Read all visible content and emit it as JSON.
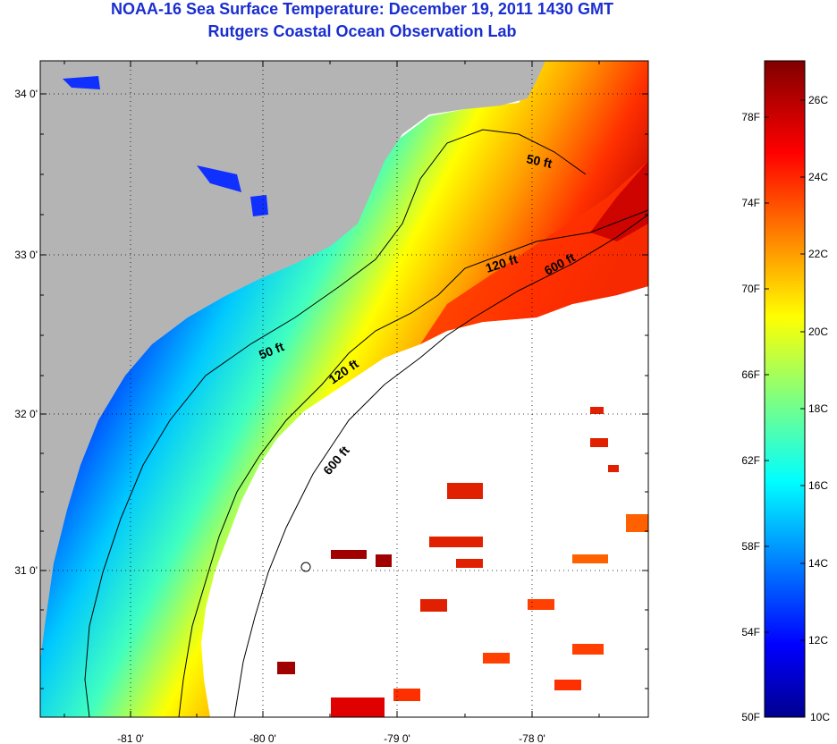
{
  "title": {
    "line1": "NOAA-16 Sea Surface Temperature:  December 19, 2011 1430 GMT",
    "line2": "Rutgers Coastal Ocean Observation Lab"
  },
  "map": {
    "lat_labels": [
      "34 0'",
      "33 0'",
      "32 0'",
      "31 0'"
    ],
    "lon_labels": [
      "-81 0'",
      "-80 0'",
      "-79 0'",
      "-78 0'"
    ],
    "depth_labels": {
      "ft50_north": "50 ft",
      "ft50_south": "50 ft",
      "ft120_north": "120 ft",
      "ft120_south": "120 ft",
      "ft600_north": "600 ft",
      "ft600_south": "600 ft"
    },
    "colors": {
      "land": "#b4b4b4",
      "clouds": "#ffffff",
      "contour": "#000000"
    }
  },
  "colorbar": {
    "fahrenheit_labels": [
      "78F",
      "74F",
      "70F",
      "66F",
      "62F",
      "58F",
      "54F",
      "50F"
    ],
    "celsius_labels": [
      "26C",
      "24C",
      "22C",
      "20C",
      "18C",
      "16C",
      "14C",
      "12C",
      "10C"
    ],
    "colormap": "jet",
    "range_c": [
      10,
      27
    ]
  }
}
